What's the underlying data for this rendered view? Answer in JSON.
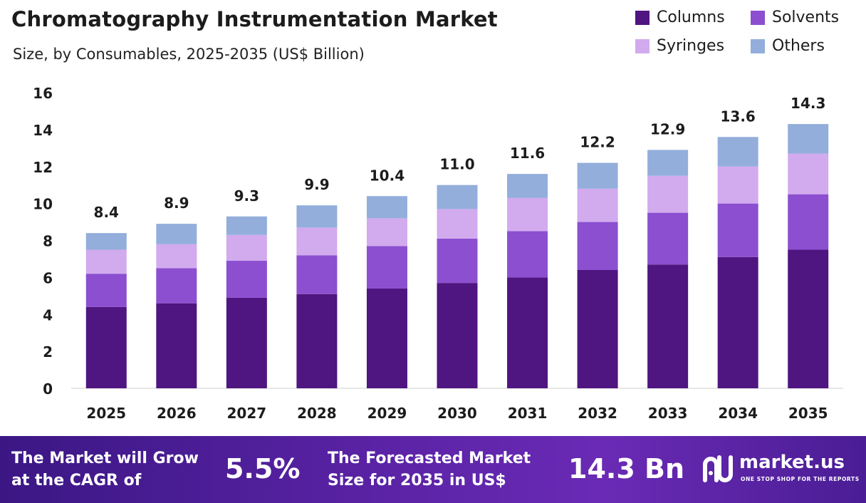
{
  "title": "Chromatography Instrumentation Market",
  "subtitle": "Size, by Consumables, 2025-2035 (US$ Billion)",
  "chart_data": {
    "type": "bar",
    "stacked": true,
    "categories": [
      "2025",
      "2026",
      "2027",
      "2028",
      "2029",
      "2030",
      "2031",
      "2032",
      "2033",
      "2034",
      "2035"
    ],
    "series": [
      {
        "name": "Columns",
        "color": "#4f1580",
        "values": [
          4.4,
          4.6,
          4.9,
          5.1,
          5.4,
          5.7,
          6.0,
          6.4,
          6.7,
          7.1,
          7.5
        ]
      },
      {
        "name": "Solvents",
        "color": "#8b4fd0",
        "values": [
          1.8,
          1.9,
          2.0,
          2.1,
          2.3,
          2.4,
          2.5,
          2.6,
          2.8,
          2.9,
          3.0
        ]
      },
      {
        "name": "Syringes",
        "color": "#d2aaee",
        "values": [
          1.3,
          1.3,
          1.4,
          1.5,
          1.5,
          1.6,
          1.8,
          1.8,
          2.0,
          2.0,
          2.2
        ]
      },
      {
        "name": "Others",
        "color": "#93aedb",
        "values": [
          0.9,
          1.1,
          1.0,
          1.2,
          1.2,
          1.3,
          1.3,
          1.4,
          1.4,
          1.6,
          1.6
        ]
      }
    ],
    "totals": [
      "8.4",
      "8.9",
      "9.3",
      "9.9",
      "10.4",
      "11.0",
      "11.6",
      "12.2",
      "12.9",
      "13.6",
      "14.3"
    ],
    "yticks": [
      "0",
      "2",
      "4",
      "6",
      "8",
      "10",
      "12",
      "14",
      "16"
    ],
    "ylim": [
      0,
      16
    ],
    "xlabel": "",
    "ylabel": "",
    "grid": false,
    "legend_position": "top-right"
  },
  "footer": {
    "cagr_label_line1": "The Market will Grow",
    "cagr_label_line2": "at the CAGR of",
    "cagr_value": "5.5%",
    "forecast_label_line1": "The Forecasted Market",
    "forecast_label_line2": "Size for 2035 in US$",
    "forecast_value": "14.3 Bn",
    "brand_name": "market.us",
    "brand_tagline": "ONE STOP SHOP FOR THE REPORTS"
  }
}
